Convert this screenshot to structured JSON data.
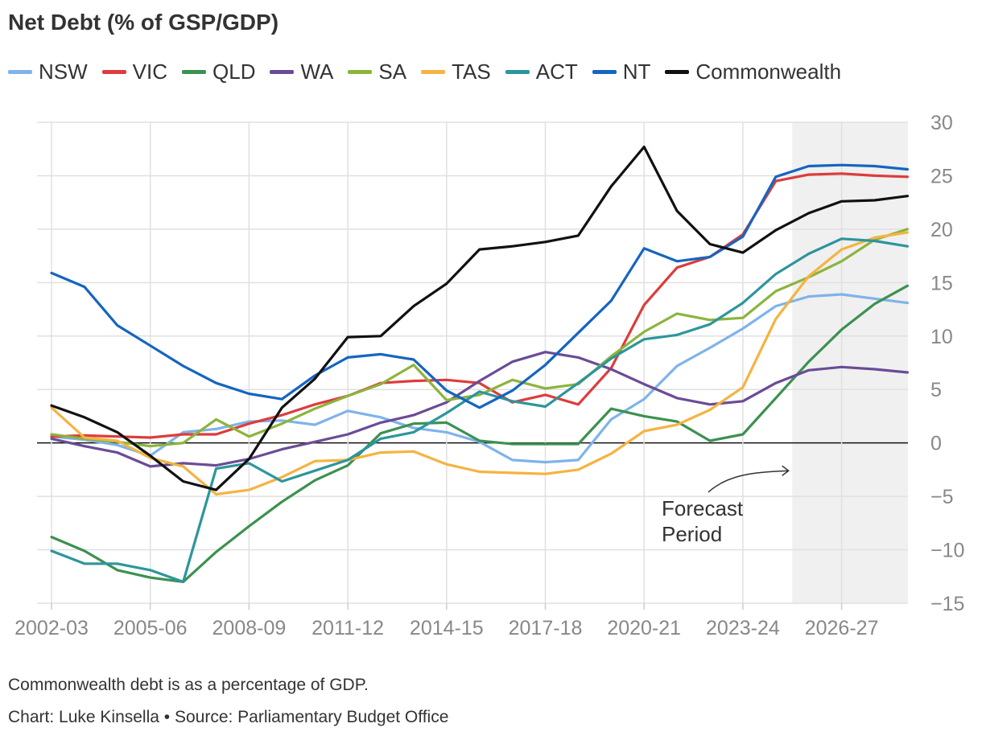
{
  "title": "Net Debt (% of GSP/GDP)",
  "note": "Commonwealth debt is as a percentage of GDP.",
  "credit": "Chart: Luke Kinsella • Source: Parliamentary Budget Office",
  "annotation": {
    "line1": "Forecast",
    "line2": "Period"
  },
  "chart_data": {
    "type": "line",
    "title": "Net Debt (% of GSP/GDP)",
    "xlabel": "",
    "ylabel": "",
    "ylim": [
      -15,
      30
    ],
    "yticks": [
      30,
      25,
      20,
      15,
      10,
      5,
      0,
      -5,
      -10,
      -15
    ],
    "ytick_labels": [
      "30",
      "25",
      "20",
      "15",
      "10",
      "5",
      "0",
      "−5",
      "−10",
      "−15"
    ],
    "y_axis_side": "right",
    "grid": true,
    "legend": "top",
    "forecast_shading": {
      "from": "2025-26",
      "to": "2028-29"
    },
    "x": [
      "2002-03",
      "2003-04",
      "2004-05",
      "2005-06",
      "2006-07",
      "2007-08",
      "2008-09",
      "2009-10",
      "2010-11",
      "2011-12",
      "2012-13",
      "2013-14",
      "2014-15",
      "2015-16",
      "2016-17",
      "2017-18",
      "2018-19",
      "2019-20",
      "2020-21",
      "2021-22",
      "2022-23",
      "2023-24",
      "2024-25",
      "2025-26",
      "2026-27",
      "2027-28",
      "2028-29"
    ],
    "xtick_labels": [
      "2002-03",
      "2005-06",
      "2008-09",
      "2011-12",
      "2014-15",
      "2017-18",
      "2020-21",
      "2023-24",
      "2026-27"
    ],
    "series": [
      {
        "name": "NSW",
        "color": "#7fb3ea",
        "values": [
          0.6,
          0.3,
          -0.2,
          -1.2,
          1.0,
          1.3,
          2.0,
          2.1,
          1.7,
          3.0,
          2.4,
          1.4,
          1.0,
          0.1,
          -1.6,
          -1.8,
          -1.6,
          2.2,
          4.1,
          7.2,
          8.9,
          10.7,
          12.8,
          13.7,
          13.9,
          13.5,
          13.1
        ]
      },
      {
        "name": "VIC",
        "color": "#dd3c3c",
        "values": [
          0.6,
          0.7,
          0.6,
          0.5,
          0.8,
          0.8,
          1.8,
          2.6,
          3.6,
          4.4,
          5.6,
          5.8,
          5.9,
          5.6,
          3.8,
          4.5,
          3.6,
          7.0,
          12.9,
          16.4,
          17.4,
          19.5,
          24.5,
          25.1,
          25.2,
          25.0,
          24.9
        ]
      },
      {
        "name": "QLD",
        "color": "#3c9150",
        "values": [
          -8.8,
          -10.1,
          -11.9,
          -12.6,
          -13.0,
          -10.2,
          -7.8,
          -5.5,
          -3.5,
          -2.1,
          0.9,
          1.8,
          1.9,
          0.2,
          -0.1,
          -0.1,
          -0.1,
          3.2,
          2.5,
          2.0,
          0.2,
          0.8,
          4.2,
          7.6,
          10.6,
          13.0,
          14.7
        ]
      },
      {
        "name": "WA",
        "color": "#6a4c96",
        "values": [
          0.4,
          -0.3,
          -0.9,
          -2.2,
          -1.9,
          -2.1,
          -1.5,
          -0.6,
          0.1,
          0.8,
          1.9,
          2.6,
          3.8,
          5.8,
          7.6,
          8.5,
          8.0,
          6.9,
          5.5,
          4.2,
          3.6,
          3.9,
          5.6,
          6.8,
          7.1,
          6.9,
          6.6
        ]
      },
      {
        "name": "SA",
        "color": "#8cb43c",
        "values": [
          0.8,
          0.4,
          0.1,
          -0.3,
          0.0,
          2.2,
          0.6,
          1.8,
          3.2,
          4.4,
          5.5,
          7.3,
          4.0,
          4.5,
          5.9,
          5.1,
          5.5,
          8.1,
          10.4,
          12.1,
          11.5,
          11.7,
          14.2,
          15.5,
          17.0,
          19.0,
          20.0
        ]
      },
      {
        "name": "TAS",
        "color": "#f5b342",
        "values": [
          3.3,
          0.5,
          0.2,
          -1.4,
          -2.2,
          -4.8,
          -4.4,
          -3.2,
          -1.7,
          -1.6,
          -0.9,
          -0.8,
          -2.0,
          -2.7,
          -2.8,
          -2.9,
          -2.5,
          -1.0,
          1.1,
          1.7,
          3.1,
          5.2,
          11.6,
          15.6,
          18.1,
          19.2,
          19.7
        ]
      },
      {
        "name": "ACT",
        "color": "#2d959c",
        "values": [
          -10.1,
          -11.3,
          -11.3,
          -11.9,
          -13.0,
          -2.4,
          -1.9,
          -3.6,
          -2.6,
          -1.6,
          0.4,
          1.0,
          2.8,
          4.8,
          3.9,
          3.4,
          5.6,
          7.9,
          9.7,
          10.1,
          11.1,
          13.1,
          15.8,
          17.7,
          19.1,
          18.9,
          18.4
        ]
      },
      {
        "name": "NT",
        "color": "#1565c0",
        "values": [
          15.9,
          14.6,
          11.0,
          9.1,
          7.2,
          5.6,
          4.6,
          4.1,
          6.3,
          8.0,
          8.3,
          7.8,
          4.9,
          3.3,
          4.9,
          7.3,
          10.3,
          13.3,
          18.2,
          17.0,
          17.4,
          19.3,
          24.9,
          25.9,
          26.0,
          25.9,
          25.6
        ]
      },
      {
        "name": "Commonwealth",
        "color": "#111111",
        "values": [
          3.5,
          2.4,
          1.0,
          -1.2,
          -3.6,
          -4.4,
          -1.5,
          3.3,
          6.0,
          9.9,
          10.0,
          12.8,
          14.9,
          18.1,
          18.4,
          18.8,
          19.4,
          24.0,
          27.7,
          21.7,
          18.6,
          17.8,
          19.9,
          21.5,
          22.6,
          22.7,
          23.1
        ]
      }
    ]
  }
}
